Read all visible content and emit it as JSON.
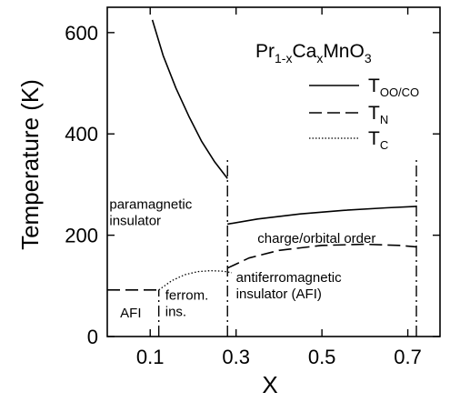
{
  "chart_data": {
    "type": "line",
    "xlabel": "X",
    "ylabel": "Temperature (K)",
    "xlim": [
      0,
      0.775
    ],
    "ylim": [
      0,
      650
    ],
    "x_ticks": [
      0.1,
      0.3,
      0.5,
      0.7
    ],
    "x_tick_labels": [
      "0.1",
      "0.3",
      "0.5",
      "0.7"
    ],
    "y_ticks": [
      0,
      200,
      400,
      600
    ],
    "y_tick_labels": [
      "0",
      "200",
      "400",
      "600"
    ],
    "formula": {
      "base": "Pr",
      "sub1": "1-x",
      "mid": "Ca",
      "sub2": "x",
      "end": "MnO",
      "sub3": "3"
    },
    "legend": [
      {
        "base": "T",
        "sub": "OO/CO",
        "style": "solid"
      },
      {
        "base": "T",
        "sub": "N",
        "style": "dashed"
      },
      {
        "base": "T",
        "sub": "C",
        "style": "dotted"
      }
    ],
    "series": [
      {
        "style": "solid",
        "segments": [
          {
            "x": [
              0.105,
              0.13,
              0.16,
              0.19,
              0.22,
              0.25,
              0.28
            ],
            "y": [
              625,
              555,
              490,
              435,
              385,
              345,
              312
            ]
          },
          {
            "x": [
              0.28,
              0.35,
              0.45,
              0.55,
              0.65,
              0.72
            ],
            "y": [
              222,
              232,
              242,
              249,
              254,
              257
            ]
          }
        ]
      },
      {
        "style": "dashed",
        "segments": [
          {
            "x": [
              0.0,
              0.12
            ],
            "y": [
              92,
              92
            ]
          },
          {
            "x": [
              0.28,
              0.33,
              0.4,
              0.5,
              0.6,
              0.68,
              0.72
            ],
            "y": [
              135,
              155,
              170,
              180,
              182,
              180,
              177
            ]
          }
        ]
      },
      {
        "style": "dotted",
        "segments": [
          {
            "x": [
              0.12,
              0.15,
              0.18,
              0.21,
              0.24,
              0.27,
              0.29
            ],
            "y": [
              92,
              110,
              122,
              128,
              130,
              129,
              126
            ]
          }
        ]
      }
    ],
    "boundaries": [
      {
        "x": 0.12,
        "y": [
          0,
          92
        ],
        "style": "dashdot"
      },
      {
        "x": 0.28,
        "y": [
          0,
          350
        ],
        "style": "dashdot"
      },
      {
        "x": 0.72,
        "y": [
          0,
          350
        ],
        "style": "dashdot"
      }
    ],
    "regions": [
      {
        "lines": [
          "paramagnetic",
          "insulator"
        ],
        "x": 0.005,
        "y": 252
      },
      {
        "lines": [
          "charge/orbital order"
        ],
        "x": 0.35,
        "y": 185
      },
      {
        "lines": [
          "antiferromagnetic",
          "insulator  (AFI)"
        ],
        "x": 0.3,
        "y": 108
      },
      {
        "lines": [
          "ferrom.",
          "ins."
        ],
        "x": 0.135,
        "y": 73
      },
      {
        "lines": [
          "AFI"
        ],
        "x": 0.03,
        "y": 38
      }
    ]
  }
}
